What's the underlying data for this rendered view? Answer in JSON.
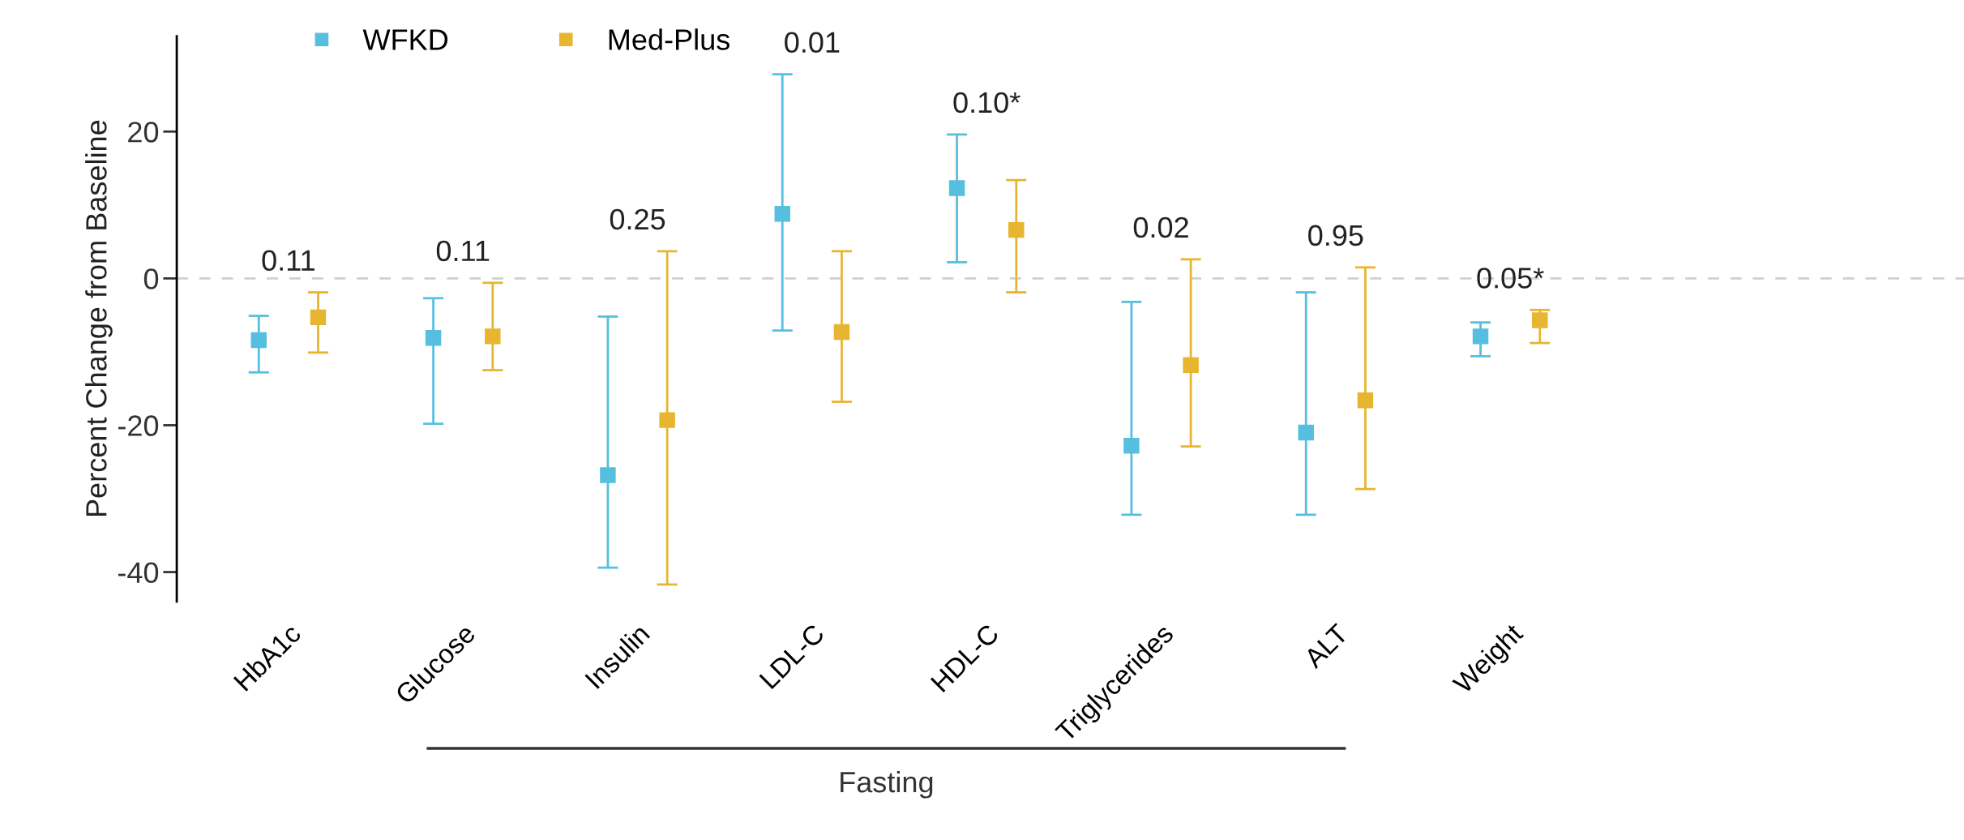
{
  "chart_data": {
    "type": "scatter",
    "ylabel": "Percent Change from Baseline",
    "categories": [
      "HbA1c",
      "Glucose",
      "Insulin",
      "LDL-C",
      "HDL-C",
      "Triglycerides",
      "ALT",
      "Weight"
    ],
    "series": [
      {
        "name": "WFKD",
        "color": "#56bfe0",
        "values": [
          -8.4,
          -8.1,
          -26.8,
          8.8,
          12.3,
          -22.8,
          -21.0,
          -7.9
        ],
        "errors": [
          [
            -12.8,
            -5.1
          ],
          [
            -19.8,
            -2.7
          ],
          [
            -39.4,
            -5.2
          ],
          [
            -7.1,
            27.8
          ],
          [
            2.2,
            19.6
          ],
          [
            -32.2,
            -3.2
          ],
          [
            -32.2,
            -1.9
          ],
          [
            -10.6,
            -6.0
          ]
        ]
      },
      {
        "name": "Med-Plus",
        "color": "#e8b530",
        "values": [
          -5.3,
          -7.9,
          -19.3,
          -7.3,
          6.6,
          -11.8,
          -16.6,
          -5.7
        ],
        "errors": [
          [
            -10.1,
            -1.9
          ],
          [
            -12.5,
            -0.6
          ],
          [
            -41.7,
            3.7
          ],
          [
            -16.8,
            3.7
          ],
          [
            -1.9,
            13.4
          ],
          [
            -22.9,
            2.6
          ],
          [
            -28.7,
            1.5
          ],
          [
            -8.8,
            -4.3
          ]
        ]
      }
    ],
    "annotations": [
      "0.11",
      "0.11",
      "0.25",
      "0.01",
      "0.10*",
      "0.02",
      "0.95",
      "0.05*",
      "Fasting"
    ],
    "ylim": [
      -44,
      33
    ],
    "yticks": [
      -40,
      -20,
      0,
      20
    ],
    "ref_lines": [
      {
        "axis": "y",
        "value": 0,
        "color": "#d0d0d0",
        "line_style": "dashed"
      }
    ],
    "marker": "square",
    "legend": "top left",
    "grid": false
  }
}
